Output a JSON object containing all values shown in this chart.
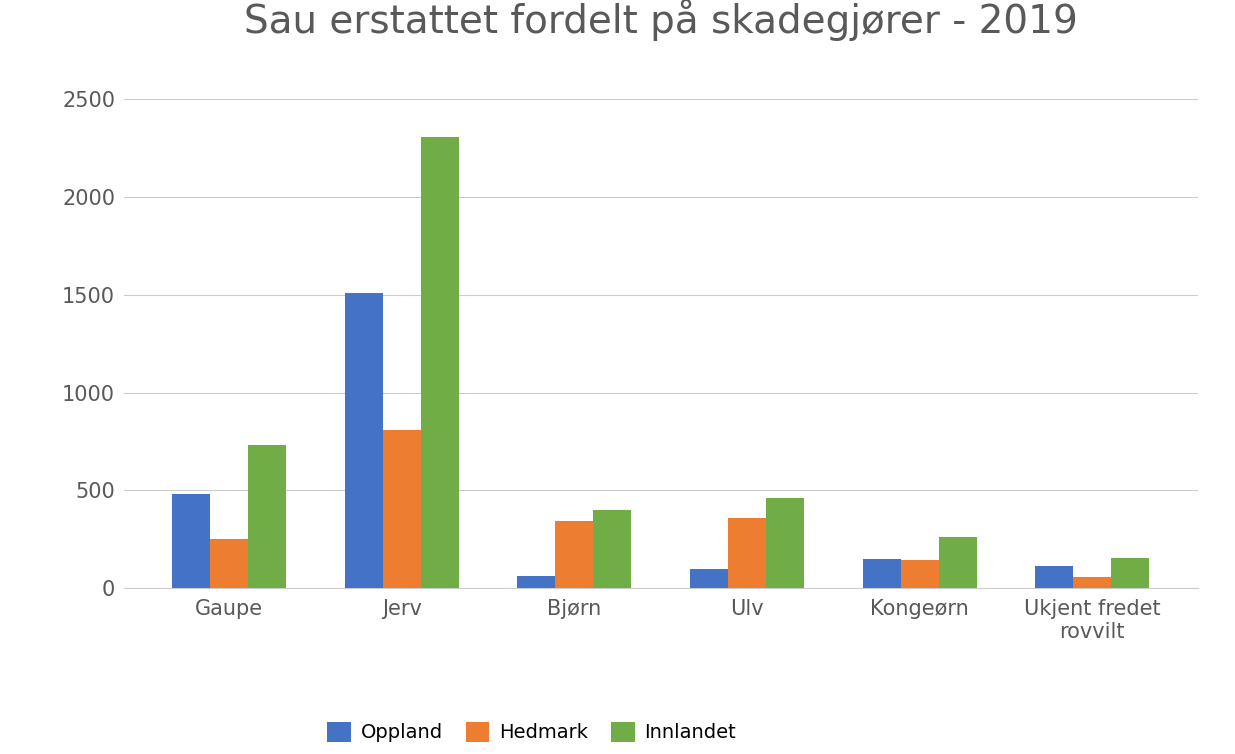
{
  "title": "Sau erstattet fordelt på skadegjører - 2019",
  "categories": [
    "Gaupe",
    "Jerv",
    "Bjørn",
    "Ulv",
    "Kongeørn",
    "Ukjent fredet\nrovvilt"
  ],
  "series": {
    "Oppland": [
      480,
      1510,
      60,
      100,
      150,
      115
    ],
    "Hedmark": [
      250,
      810,
      345,
      360,
      145,
      55
    ],
    "Innlandet": [
      730,
      2310,
      400,
      460,
      260,
      155
    ]
  },
  "series_colors": {
    "Oppland": "#4472C4",
    "Hedmark": "#ED7D31",
    "Innlandet": "#70AD47"
  },
  "ylim": [
    0,
    2700
  ],
  "yticks": [
    0,
    500,
    1000,
    1500,
    2000,
    2500
  ],
  "ytick_labels": [
    "0",
    "500",
    "1000",
    "1500",
    "2000",
    "2500"
  ],
  "background_color": "#ffffff",
  "title_fontsize": 28,
  "tick_fontsize": 15,
  "legend_fontsize": 14,
  "bar_width": 0.22,
  "grid_color": "#cccccc",
  "text_color": "#595959"
}
